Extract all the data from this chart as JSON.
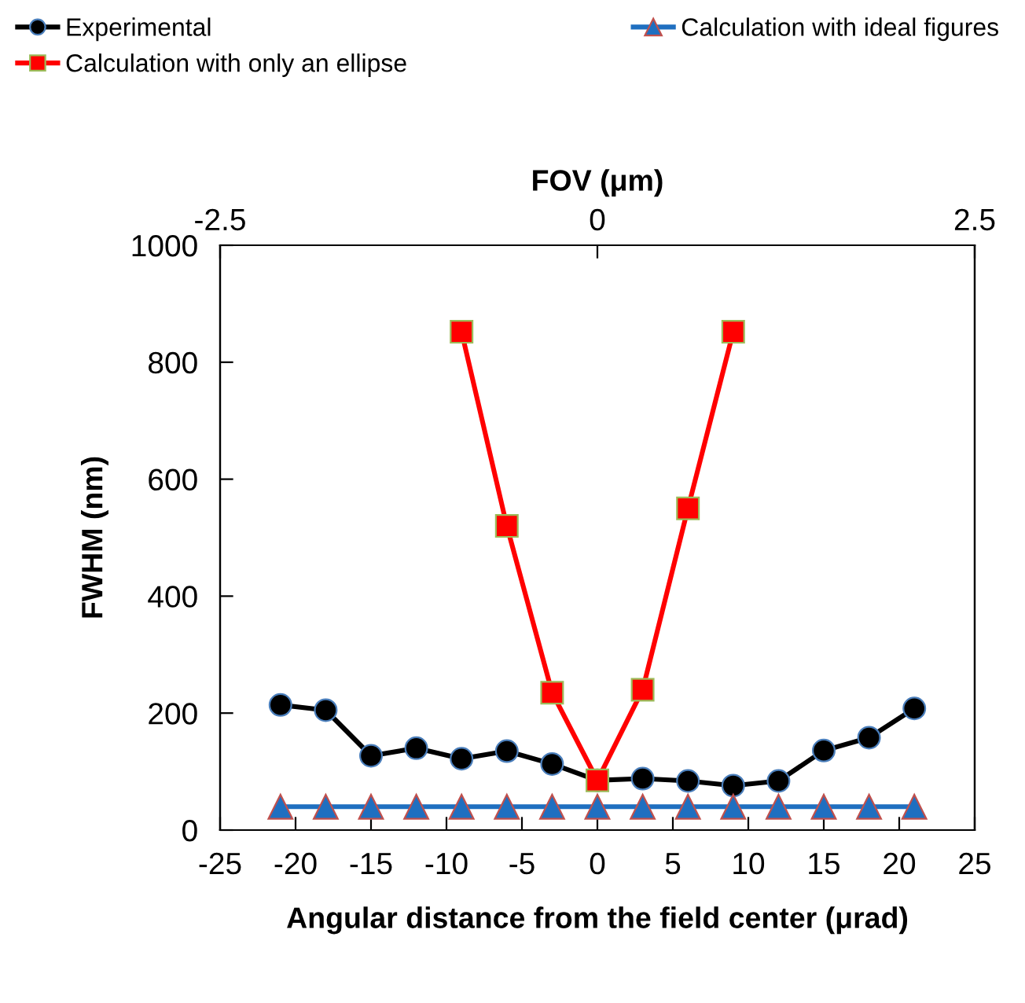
{
  "chart_data": {
    "type": "line",
    "xlabel": "Angular distance from the field center (μrad)",
    "ylabel": "FWHM (nm)",
    "x2label": "FOV (μm)",
    "xlim": [
      -25,
      25
    ],
    "xticks": [
      -25,
      -20,
      -15,
      -10,
      -5,
      0,
      5,
      10,
      15,
      20,
      25
    ],
    "ylim": [
      0,
      1000
    ],
    "yticks": [
      0,
      200,
      400,
      600,
      800,
      1000
    ],
    "x2lim": [
      -2.5,
      2.5
    ],
    "x2ticks": [
      -2.5,
      0,
      2.5
    ],
    "grid": false,
    "legend": "top",
    "x": [
      -21,
      -18,
      -15,
      -12,
      -9,
      -6,
      -3,
      0,
      3,
      6,
      9,
      12,
      15,
      18,
      21
    ],
    "series": [
      {
        "name": "Experimental",
        "color": "#000000",
        "marker": "circle",
        "values": [
          214,
          205,
          127,
          140,
          122,
          135,
          113,
          85,
          88,
          84,
          76,
          84,
          136,
          158,
          208
        ]
      },
      {
        "name": "Calculation with ideal figures",
        "color": "#1f6fc0",
        "marker": "triangle",
        "values": [
          40,
          40,
          40,
          40,
          40,
          40,
          40,
          40,
          40,
          40,
          40,
          40,
          40,
          40,
          40
        ]
      },
      {
        "name": "Calculation with only an ellipse",
        "color": "#ff0000",
        "marker": "square",
        "values": [
          null,
          null,
          null,
          null,
          852,
          520,
          235,
          85,
          240,
          550,
          852,
          null,
          null,
          null,
          null
        ]
      }
    ]
  }
}
